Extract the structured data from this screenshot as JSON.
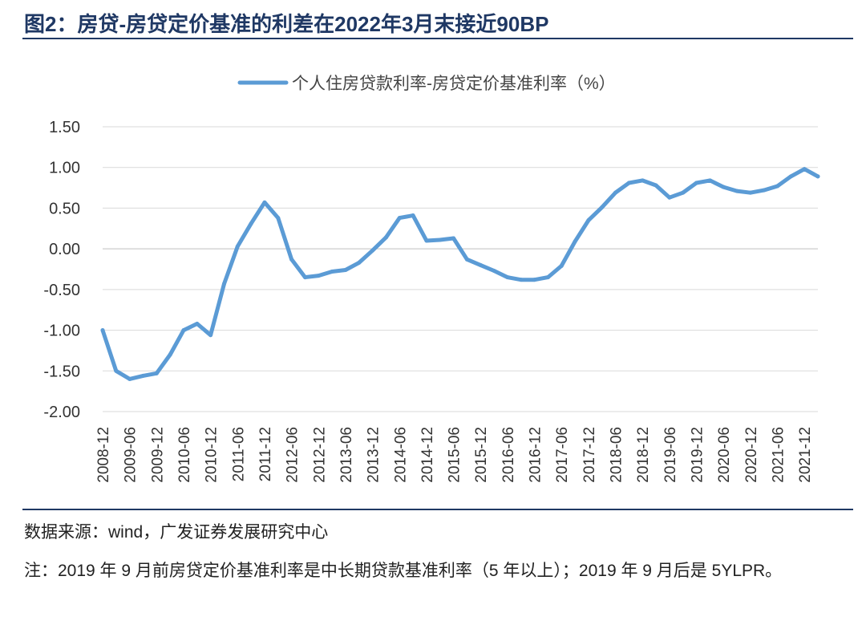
{
  "title": "图2：房贷-房贷定价基准的利差在2022年3月末接近90BP",
  "source": "数据来源：wind，广发证券发展研究中心",
  "note": "注：2019 年 9 月前房贷定价基准利率是中长期贷款基准利率（5 年以上）；2019 年 9 月后是 5YLPR。",
  "colors": {
    "line": "#5b9bd5",
    "rule": "#1f3864",
    "grid": "#d9d9d9"
  },
  "chart_data": {
    "type": "line",
    "title": "",
    "legend": "个人住房贷款利率-房贷定价基准利率（%）",
    "legend_position": "top-center",
    "ylim": [
      -2.0,
      1.5
    ],
    "yticks": [
      "1.50",
      "1.00",
      "0.50",
      "0.00",
      "-0.50",
      "-1.00",
      "-1.50",
      "-2.00"
    ],
    "ytick_values": [
      1.5,
      1.0,
      0.5,
      0.0,
      -0.5,
      -1.0,
      -1.5,
      -2.0
    ],
    "xticks": [
      "2008-12",
      "2009-06",
      "2009-12",
      "2010-06",
      "2010-12",
      "2011-06",
      "2011-12",
      "2012-06",
      "2012-12",
      "2013-06",
      "2013-12",
      "2014-06",
      "2014-12",
      "2015-06",
      "2015-12",
      "2016-06",
      "2016-12",
      "2017-06",
      "2017-12",
      "2018-06",
      "2018-12",
      "2019-06",
      "2019-12",
      "2020-06",
      "2020-12",
      "2021-06",
      "2021-12"
    ],
    "series": [
      {
        "name": "个人住房贷款利率-房贷定价基准利率（%）",
        "values": [
          -1.0,
          -1.5,
          -1.6,
          -1.56,
          -1.53,
          -1.3,
          -1.0,
          -0.92,
          -1.06,
          -0.43,
          0.03,
          0.31,
          0.57,
          0.38,
          -0.13,
          -0.35,
          -0.33,
          -0.28,
          -0.26,
          -0.17,
          -0.02,
          0.14,
          0.38,
          0.41,
          0.1,
          0.11,
          0.13,
          -0.13,
          -0.2,
          -0.27,
          -0.35,
          -0.38,
          -0.38,
          -0.35,
          -0.21,
          0.09,
          0.35,
          0.51,
          0.69,
          0.81,
          0.84,
          0.78,
          0.63,
          0.69,
          0.81,
          0.84,
          0.76,
          0.71,
          0.69,
          0.72,
          0.77,
          0.89,
          0.98,
          0.89
        ]
      }
    ]
  }
}
